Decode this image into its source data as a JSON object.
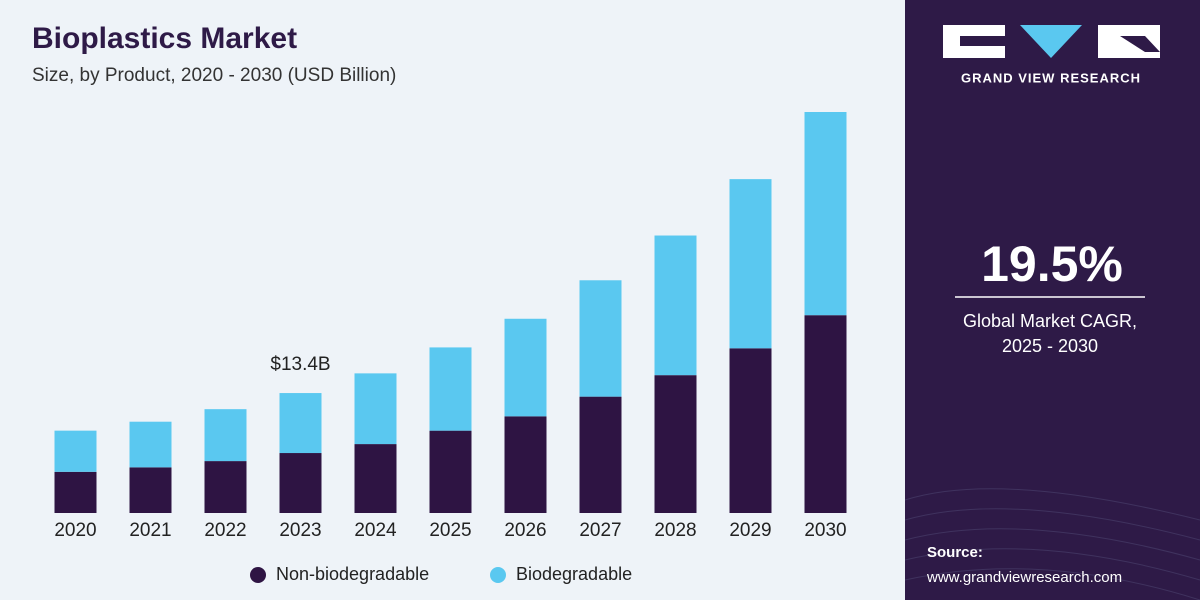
{
  "chart_data": {
    "type": "bar",
    "stacked": true,
    "title": "Bioplastics Market",
    "subtitle": "Size, by Product, 2020 - 2030 (USD Billion)",
    "categories": [
      "2020",
      "2021",
      "2022",
      "2023",
      "2024",
      "2025",
      "2026",
      "2027",
      "2028",
      "2029",
      "2030"
    ],
    "series": [
      {
        "name": "Non-biodegradable",
        "color": "#2e1443",
        "values": [
          4.6,
          5.1,
          5.8,
          6.7,
          7.7,
          9.2,
          10.8,
          13.0,
          15.4,
          18.4,
          22.1
        ]
      },
      {
        "name": "Biodegradable",
        "color": "#5ac8f0",
        "values": [
          4.6,
          5.1,
          5.8,
          6.7,
          7.9,
          9.3,
          10.9,
          13.0,
          15.6,
          18.9,
          22.7
        ]
      }
    ],
    "annotations": [
      {
        "x": "2023",
        "value": 13.4,
        "label": "$13.4B"
      }
    ]
  },
  "brand": {
    "name": "GRAND VIEW RESEARCH"
  },
  "highlight": {
    "value": "19.5%",
    "label": "Global Market CAGR,",
    "period": "2025 - 2030"
  },
  "source": {
    "label": "Source:",
    "url": "www.grandviewresearch.com"
  }
}
